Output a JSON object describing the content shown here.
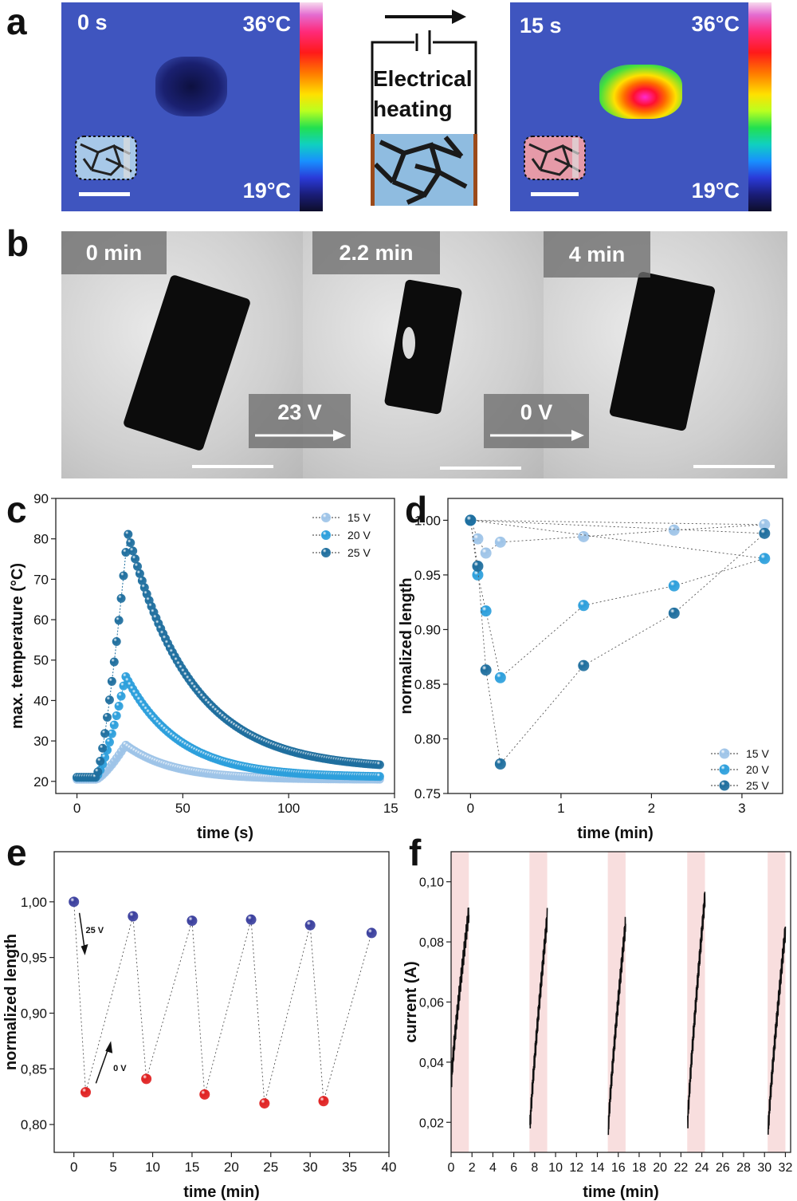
{
  "panel_labels": {
    "a": "a",
    "b": "b",
    "c": "c",
    "d": "d",
    "e": "e",
    "f": "f"
  },
  "panel_a": {
    "left": {
      "time": "0 s",
      "tmax": "36°C",
      "tmin": "19°C"
    },
    "right": {
      "time": "15 s",
      "tmax": "36°C",
      "tmin": "19°C"
    },
    "diagram_text": [
      "Electrical",
      "heating"
    ]
  },
  "panel_b": {
    "frames": [
      "0 min",
      "2.2 min",
      "4 min"
    ],
    "voltages": [
      "23 V",
      "0 V"
    ]
  },
  "colors": {
    "s15": "#9ec4e8",
    "s20": "#2c9fdc",
    "s25": "#1e6e9e",
    "blue_dot": "#3a3f9e",
    "red_dot": "#e02020",
    "pulse": "#f8dede"
  },
  "chart_data": [
    {
      "panel": "c",
      "type": "scatter",
      "xlabel": "time (s)",
      "ylabel": "max. temperature (°C)",
      "xlim": [
        -10,
        150
      ],
      "ylim": [
        17,
        90
      ],
      "xticks": [
        0,
        50,
        100,
        150
      ],
      "yticks": [
        20,
        30,
        40,
        50,
        60,
        70,
        80,
        90
      ],
      "legend": "top-right",
      "series": [
        {
          "name": "15 V",
          "color_key": "s15",
          "heat_end": 23,
          "peak": 29,
          "base": 20.5,
          "tau": 22,
          "end": 20.5
        },
        {
          "name": "20 V",
          "color_key": "s20",
          "heat_end": 23,
          "peak": 46,
          "base": 21,
          "tau": 25,
          "end": 21
        },
        {
          "name": "25 V",
          "color_key": "s25",
          "heat_end": 24,
          "peak": 81.5,
          "base": 21,
          "tau": 30,
          "end": 23
        }
      ]
    },
    {
      "panel": "d",
      "type": "scatter",
      "xlabel": "time (min)",
      "ylabel": "normalized length",
      "xlim": [
        -0.25,
        3.45
      ],
      "ylim": [
        0.75,
        1.02
      ],
      "xticks": [
        0,
        1,
        2,
        3
      ],
      "yticks": [
        "0.75",
        "0.80",
        "0.85",
        "0.90",
        "0.95",
        "1.00"
      ],
      "legend": "bottom-right",
      "series": [
        {
          "name": "15 V",
          "color_key": "s15",
          "x": [
            0,
            0.08,
            0.17,
            0.33,
            1.25,
            2.25,
            3.25
          ],
          "y": [
            1.0,
            0.983,
            0.97,
            0.98,
            0.985,
            0.991,
            0.996
          ]
        },
        {
          "name": "20 V",
          "color_key": "s20",
          "x": [
            0,
            0.08,
            0.17,
            0.33,
            1.25,
            2.25,
            3.25
          ],
          "y": [
            1.0,
            0.95,
            0.917,
            0.856,
            0.922,
            0.94,
            0.965
          ]
        },
        {
          "name": "25 V",
          "color_key": "s25",
          "x": [
            0,
            0.08,
            0.17,
            0.33,
            1.25,
            2.25,
            3.25
          ],
          "y": [
            1.0,
            0.958,
            0.863,
            0.777,
            0.867,
            0.915,
            0.988
          ]
        }
      ]
    },
    {
      "panel": "e",
      "type": "scatter",
      "xlabel": "time (min)",
      "ylabel": "normalized length",
      "xlim": [
        -2.5,
        40
      ],
      "ylim": [
        0.775,
        1.045
      ],
      "xticks": [
        0,
        5,
        10,
        15,
        20,
        25,
        30,
        35,
        40
      ],
      "yticks": [
        "0,80",
        "0,85",
        "0,90",
        "0,95",
        "1,00"
      ],
      "annotations": [
        "25 V",
        "0 V"
      ],
      "series": [
        {
          "name": "",
          "x": [
            0,
            1.5,
            7.5,
            9.2,
            15,
            16.6,
            22.5,
            24.2,
            30,
            31.7,
            37.8
          ],
          "y": [
            1.0,
            0.829,
            0.987,
            0.841,
            0.983,
            0.827,
            0.984,
            0.819,
            0.979,
            0.821,
            0.972
          ]
        }
      ]
    },
    {
      "panel": "f",
      "type": "line",
      "xlabel": "time (min)",
      "ylabel": "current (A)",
      "xlim": [
        0,
        32.5
      ],
      "ylim": [
        0.01,
        0.11
      ],
      "xticks": [
        0,
        2,
        4,
        6,
        8,
        10,
        12,
        14,
        16,
        18,
        20,
        22,
        24,
        26,
        28,
        30,
        32
      ],
      "yticks": [
        "0,02",
        "0,04",
        "0,06",
        "0,08",
        "0,10"
      ],
      "pulses": [
        {
          "start": 0,
          "end": 1.7,
          "i0": 0.035,
          "i1": 0.09
        },
        {
          "start": 7.5,
          "end": 9.2,
          "i0": 0.018,
          "i1": 0.088
        },
        {
          "start": 15,
          "end": 16.7,
          "i0": 0.018,
          "i1": 0.086
        },
        {
          "start": 22.6,
          "end": 24.3,
          "i0": 0.02,
          "i1": 0.095
        },
        {
          "start": 30.3,
          "end": 32.0,
          "i0": 0.017,
          "i1": 0.084
        }
      ]
    }
  ]
}
